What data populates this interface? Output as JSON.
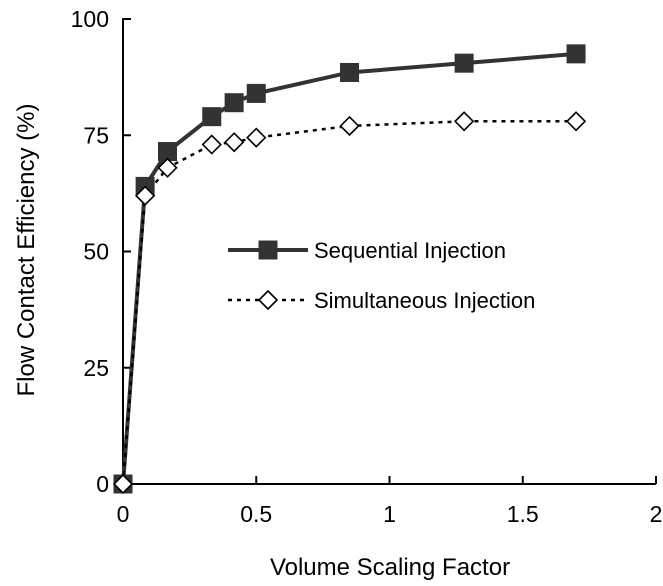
{
  "chart_data": {
    "type": "line",
    "xlabel": "Volume Scaling Factor",
    "ylabel": "Flow Contact Efficiency (%)",
    "xlim": [
      0,
      2
    ],
    "ylim": [
      0,
      100
    ],
    "x_ticks": [
      "0",
      "0.5",
      "1",
      "1.5",
      "2"
    ],
    "y_ticks": [
      "0",
      "25",
      "50",
      "75",
      "100"
    ],
    "x_tick_values": [
      0,
      0.5,
      1,
      1.5,
      2
    ],
    "y_tick_values": [
      0,
      25,
      50,
      75,
      100
    ],
    "grid": false,
    "legend_position": "center-right",
    "series": [
      {
        "name": "Sequential Injection",
        "style": "solid",
        "marker": "filled-square",
        "color": "#333333",
        "x": [
          0,
          0.083,
          0.167,
          0.333,
          0.417,
          0.5,
          0.85,
          1.28,
          1.7
        ],
        "y": [
          0,
          64,
          71.5,
          79,
          82,
          84,
          88.5,
          90.5,
          92.5
        ]
      },
      {
        "name": "Simultaneous Injection",
        "style": "dotted",
        "marker": "open-diamond",
        "color": "#000000",
        "x": [
          0,
          0.083,
          0.167,
          0.333,
          0.417,
          0.5,
          0.85,
          1.28,
          1.7
        ],
        "y": [
          0,
          62,
          68,
          73,
          73.5,
          74.5,
          77,
          78,
          78
        ]
      }
    ]
  }
}
